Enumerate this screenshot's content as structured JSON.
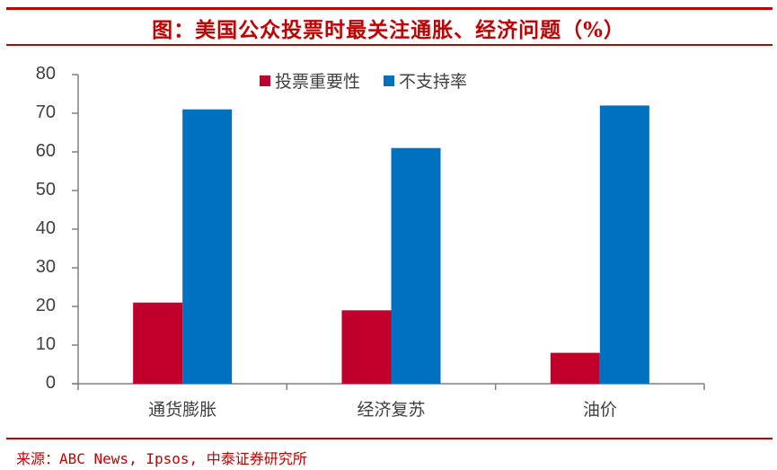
{
  "title": "图：美国公众投票时最关注通胀、经济问题（%）",
  "footer": "来源：ABC News, Ipsos, 中泰证券研究所",
  "colors": {
    "accent": "#c00000",
    "series1": "#c0002b",
    "series2": "#0070c0",
    "axis": "#808080"
  },
  "legend": [
    {
      "label": "投票重要性",
      "color": "#c0002b"
    },
    {
      "label": "不支持率",
      "color": "#0070c0"
    }
  ],
  "chart_data": {
    "type": "bar",
    "title": "图：美国公众投票时最关注通胀、经济问题（%）",
    "categories": [
      "通货膨胀",
      "经济复苏",
      "油价"
    ],
    "series": [
      {
        "name": "投票重要性",
        "values": [
          21,
          19,
          8
        ]
      },
      {
        "name": "不支持率",
        "values": [
          71,
          61,
          72
        ]
      }
    ],
    "xlabel": "",
    "ylabel": "",
    "ylim": [
      0,
      80
    ],
    "yticks": [
      0,
      10,
      20,
      30,
      40,
      50,
      60,
      70,
      80
    ],
    "grid": false,
    "legend_position": "top"
  }
}
